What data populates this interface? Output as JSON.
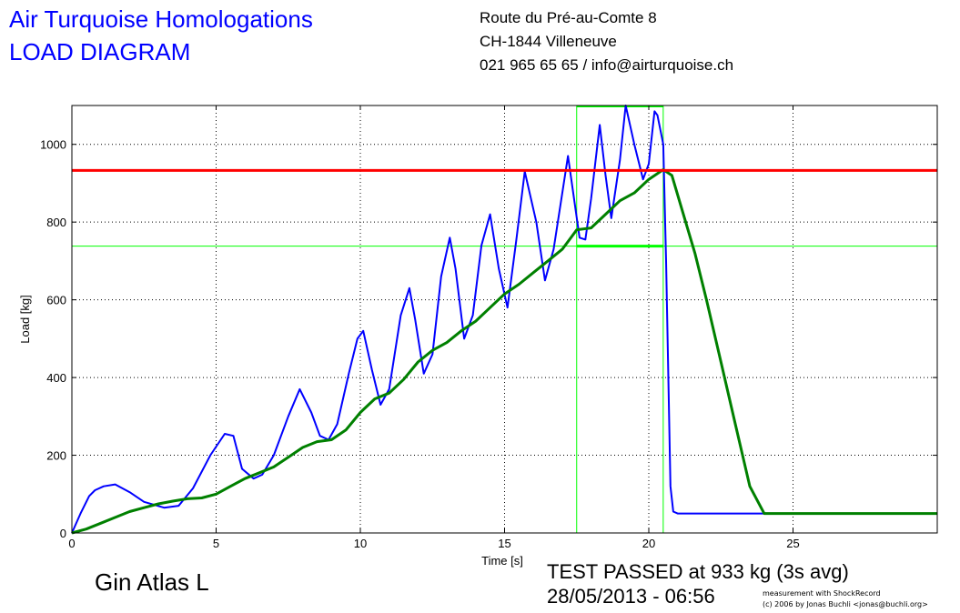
{
  "header": {
    "company": "Air Turquoise Homologations",
    "doc_title": "LOAD DIAGRAM",
    "address_line1": "Route du Pré-au-Comte 8",
    "address_line2": "CH-1844 Villeneuve",
    "contact": "021 965 65 65 / info@airturquoise.ch"
  },
  "footer": {
    "product": "Gin Atlas L",
    "result": "TEST PASSED at 933 kg (3s avg)",
    "datetime": "28/05/2013 - 06:56",
    "credit_line1": "measurement with ShockRecord",
    "credit_line2": "(c) 2006 by Jonas Buchli <jonas@buchli.org>"
  },
  "colors": {
    "raw": "#0000ff",
    "avg": "#008000",
    "limit": "#ff0000",
    "marker": "#00ff00"
  },
  "chart_data": {
    "type": "line",
    "xlabel": "Time [s]",
    "ylabel": "Load [kg]",
    "xlim": [
      0,
      30
    ],
    "ylim": [
      0,
      1100
    ],
    "xticks": [
      0,
      5,
      10,
      15,
      20,
      25
    ],
    "yticks": [
      0,
      200,
      400,
      600,
      800,
      1000
    ],
    "grid": "dotted",
    "limit_load": 933,
    "threshold_load": 738,
    "window_start": 17.5,
    "window_end": 20.5,
    "series": [
      {
        "role": "raw",
        "x": [
          0,
          0.3,
          0.6,
          0.8,
          1.1,
          1.5,
          2,
          2.5,
          3.2,
          3.7,
          4.2,
          4.8,
          5.3,
          5.6,
          5.9,
          6.3,
          6.6,
          7,
          7.5,
          7.9,
          8.3,
          8.6,
          8.9,
          9.2,
          9.6,
          9.9,
          10.1,
          10.4,
          10.7,
          11,
          11.4,
          11.7,
          11.9,
          12.2,
          12.5,
          12.8,
          13.1,
          13.3,
          13.6,
          13.9,
          14.2,
          14.5,
          14.8,
          15.1,
          15.4,
          15.7,
          16.1,
          16.4,
          16.7,
          17.2,
          17.6,
          17.8,
          18,
          18.3,
          18.5,
          18.7,
          19,
          19.2,
          19.5,
          19.8,
          20,
          20.2,
          20.3,
          20.5,
          20.6,
          20.75,
          20.85,
          21,
          22,
          23,
          24,
          25,
          26,
          27,
          28,
          29,
          30
        ],
        "y": [
          0,
          50,
          95,
          110,
          120,
          125,
          105,
          80,
          65,
          70,
          115,
          200,
          255,
          250,
          165,
          140,
          150,
          200,
          300,
          370,
          310,
          250,
          240,
          280,
          410,
          500,
          520,
          420,
          330,
          370,
          560,
          630,
          550,
          410,
          460,
          660,
          760,
          680,
          500,
          560,
          740,
          820,
          680,
          580,
          750,
          930,
          800,
          650,
          730,
          970,
          760,
          755,
          860,
          1050,
          920,
          810,
          960,
          1100,
          1000,
          910,
          950,
          1085,
          1075,
          1000,
          700,
          120,
          55,
          50,
          50,
          50,
          50,
          50,
          50,
          50,
          50,
          50,
          50
        ]
      },
      {
        "role": "avg",
        "x": [
          0,
          0.5,
          1,
          1.5,
          2,
          2.5,
          3,
          3.5,
          4,
          4.5,
          5,
          5.5,
          6,
          6.5,
          7,
          7.5,
          8,
          8.5,
          9,
          9.5,
          10,
          10.5,
          11,
          11.5,
          12,
          12.5,
          13,
          13.5,
          14,
          14.5,
          15,
          15.5,
          16,
          16.5,
          17,
          17.5,
          18,
          18.5,
          19,
          19.5,
          20,
          20.5,
          20.8,
          21.2,
          21.6,
          22,
          22.5,
          23,
          23.5,
          24,
          25,
          26,
          27,
          28,
          29,
          30
        ],
        "y": [
          0,
          10,
          25,
          40,
          55,
          65,
          75,
          82,
          88,
          90,
          100,
          120,
          140,
          155,
          170,
          195,
          220,
          235,
          240,
          265,
          310,
          345,
          360,
          395,
          440,
          470,
          490,
          520,
          545,
          580,
          615,
          640,
          670,
          700,
          730,
          780,
          785,
          820,
          855,
          875,
          910,
          935,
          920,
          820,
          720,
          600,
          440,
          280,
          120,
          50,
          50,
          50,
          50,
          50,
          50,
          50
        ]
      }
    ]
  }
}
